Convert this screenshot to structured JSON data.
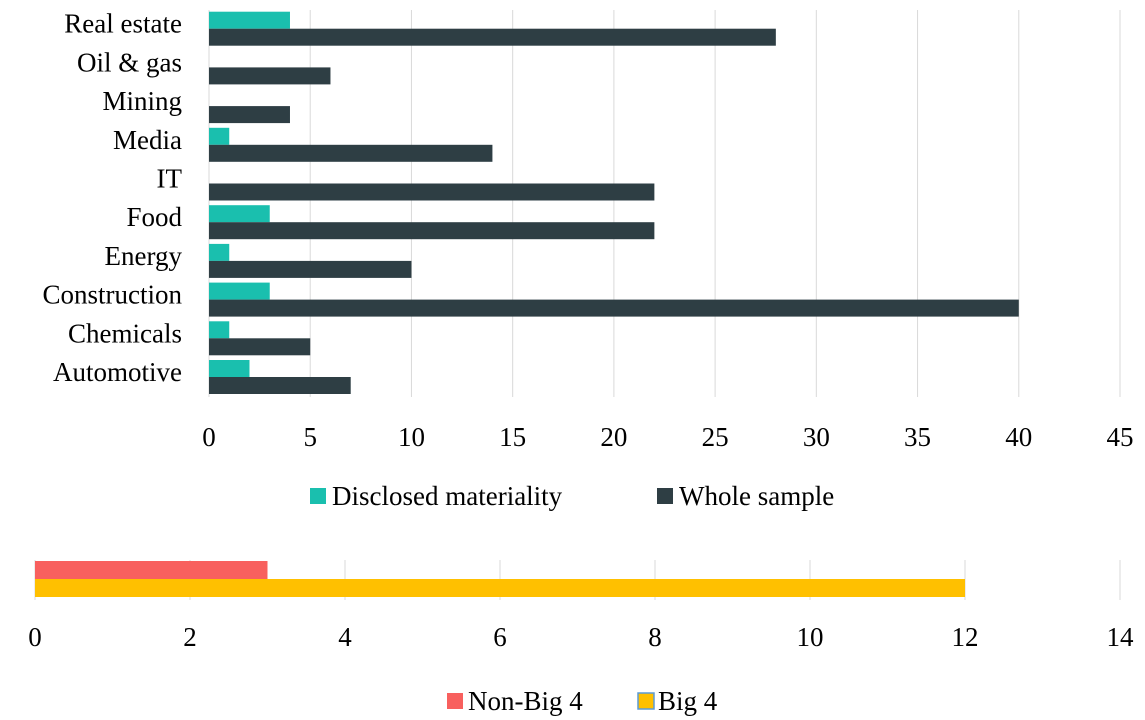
{
  "chart_data": [
    {
      "type": "bar",
      "orientation": "horizontal",
      "categories": [
        "Automotive",
        "Chemicals",
        "Construction",
        "Energy",
        "Food",
        "IT",
        "Media",
        "Mining",
        "Oil & gas",
        "Real estate"
      ],
      "series": [
        {
          "name": "Disclosed materiality",
          "values": [
            2,
            1,
            3,
            1,
            3,
            0,
            1,
            0,
            0,
            4
          ],
          "color": "#1abfae"
        },
        {
          "name": "Whole sample",
          "values": [
            7,
            5,
            40,
            10,
            22,
            22,
            14,
            4,
            6,
            28
          ],
          "color": "#2e3e44"
        }
      ],
      "xlim": [
        0,
        45
      ],
      "xticks": [
        "0",
        "5",
        "10",
        "15",
        "20",
        "25",
        "30",
        "35",
        "40",
        "45"
      ],
      "grid": "vertical",
      "legend": "bottom"
    },
    {
      "type": "bar",
      "orientation": "horizontal",
      "categories": [
        ""
      ],
      "series": [
        {
          "name": "Non-Big 4",
          "values": [
            3
          ],
          "color": "#f8605e"
        },
        {
          "name": "Big 4",
          "values": [
            12
          ],
          "color": "#ffc000"
        }
      ],
      "xlim": [
        0,
        14
      ],
      "xticks": [
        "0",
        "2",
        "4",
        "6",
        "8",
        "10",
        "12",
        "14"
      ],
      "grid": "vertical",
      "legend": "bottom"
    }
  ]
}
